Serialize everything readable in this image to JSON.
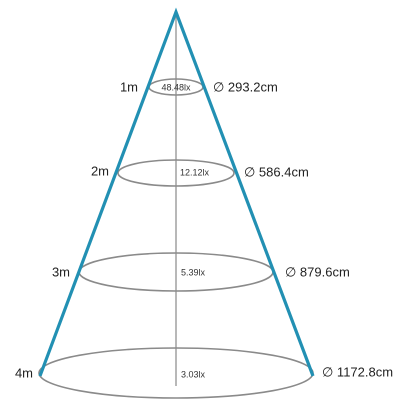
{
  "levels": [
    {
      "distance": "1m",
      "illuminance": "48.48lx",
      "diameter": "∅ 293.2cm"
    },
    {
      "distance": "2m",
      "illuminance": "12.12lx",
      "diameter": "∅ 586.4cm"
    },
    {
      "distance": "3m",
      "illuminance": "5.39lx",
      "diameter": "∅ 879.6cm"
    },
    {
      "distance": "4m",
      "illuminance": "3.03lx",
      "diameter": "∅ 1172.8cm"
    }
  ]
}
